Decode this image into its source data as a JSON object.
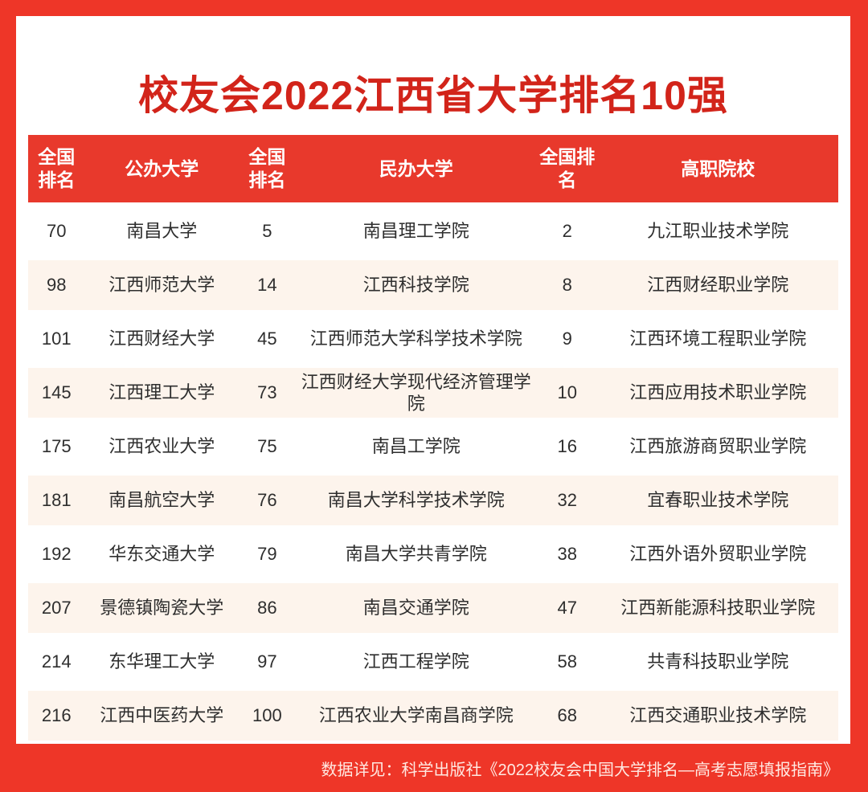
{
  "title": "校友会2022江西省大学排名10强",
  "table": {
    "headers": [
      "全国排名",
      "公办大学",
      "全国排名",
      "民办大学",
      "全国排名",
      "高职院校"
    ],
    "rows": [
      [
        "70",
        "南昌大学",
        "5",
        "南昌理工学院",
        "2",
        "九江职业技术学院"
      ],
      [
        "98",
        "江西师范大学",
        "14",
        "江西科技学院",
        "8",
        "江西财经职业学院"
      ],
      [
        "101",
        "江西财经大学",
        "45",
        "江西师范大学科学技术学院",
        "9",
        "江西环境工程职业学院"
      ],
      [
        "145",
        "江西理工大学",
        "73",
        "江西财经大学现代经济管理学院",
        "10",
        "江西应用技术职业学院"
      ],
      [
        "175",
        "江西农业大学",
        "75",
        "南昌工学院",
        "16",
        "江西旅游商贸职业学院"
      ],
      [
        "181",
        "南昌航空大学",
        "76",
        "南昌大学科学技术学院",
        "32",
        "宜春职业技术学院"
      ],
      [
        "192",
        "华东交通大学",
        "79",
        "南昌大学共青学院",
        "38",
        "江西外语外贸职业学院"
      ],
      [
        "207",
        "景德镇陶瓷大学",
        "86",
        "南昌交通学院",
        "47",
        "江西新能源科技职业学院"
      ],
      [
        "214",
        "东华理工大学",
        "97",
        "江西工程学院",
        "58",
        "共青科技职业学院"
      ],
      [
        "216",
        "江西中医药大学",
        "100",
        "江西农业大学南昌商学院",
        "68",
        "江西交通职业技术学院"
      ]
    ]
  },
  "footer": {
    "note": "数据详见：科学出版社《2022校友会中国大学排名—高考志愿填报指南》"
  },
  "colors": {
    "border_red": "#ee3628",
    "header_red": "#e8392c",
    "title_red": "#d2241a",
    "row_alt_bg": "#fdf4ec",
    "body_text": "#2e2e2e",
    "footer_text": "#ffe9e2"
  }
}
